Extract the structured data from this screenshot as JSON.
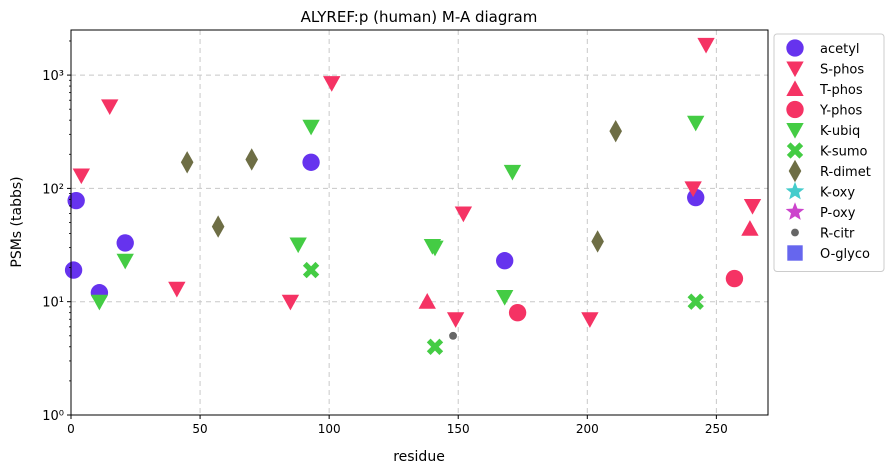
{
  "chart_data": {
    "type": "scatter",
    "title": "ALYREF:p (human) M-A diagram",
    "xlabel": "residue",
    "ylabel": "PSMs (tabbs)",
    "xlim": [
      0,
      270
    ],
    "ylim": [
      1,
      2500
    ],
    "yscale": "log",
    "grid": true,
    "legend": "outside-right",
    "x_ticks": [
      0,
      50,
      100,
      150,
      200,
      250
    ],
    "x_tick_labels": [
      "0",
      "50",
      "100",
      "150",
      "200",
      "250"
    ],
    "y_ticks": [
      1,
      10,
      100,
      1000
    ],
    "y_tick_labels": [
      "10⁰",
      "10¹",
      "10²",
      "10³"
    ],
    "series": [
      {
        "name": "acetyl",
        "marker": "circle",
        "color": "#6633ee",
        "points": [
          [
            1,
            19
          ],
          [
            2,
            78
          ],
          [
            11,
            12
          ],
          [
            21,
            33
          ],
          [
            93,
            170
          ],
          [
            168,
            23
          ],
          [
            242,
            83
          ]
        ]
      },
      {
        "name": "S-phos",
        "marker": "triangle-down",
        "color": "#f53364",
        "points": [
          [
            4,
            130
          ],
          [
            15,
            530
          ],
          [
            41,
            13
          ],
          [
            85,
            10
          ],
          [
            101,
            850
          ],
          [
            149,
            7
          ],
          [
            152,
            60
          ],
          [
            201,
            7
          ],
          [
            241,
            100
          ],
          [
            246,
            1850
          ],
          [
            264,
            70
          ]
        ]
      },
      {
        "name": "T-phos",
        "marker": "triangle-up",
        "color": "#f53364",
        "points": [
          [
            138,
            10
          ],
          [
            263,
            44
          ]
        ]
      },
      {
        "name": "Y-phos",
        "marker": "circle",
        "color": "#f53364",
        "points": [
          [
            173,
            8
          ],
          [
            257,
            16
          ]
        ]
      },
      {
        "name": "K-ubiq",
        "marker": "triangle-down",
        "color": "#44cc44",
        "points": [
          [
            11,
            10
          ],
          [
            21,
            23
          ],
          [
            88,
            32
          ],
          [
            93,
            350
          ],
          [
            140,
            31
          ],
          [
            141,
            30
          ],
          [
            168,
            11
          ],
          [
            171,
            140
          ],
          [
            242,
            380
          ]
        ]
      },
      {
        "name": "K-sumo",
        "marker": "x",
        "color": "#44cc44",
        "points": [
          [
            93,
            19
          ],
          [
            141,
            4
          ],
          [
            242,
            10
          ]
        ]
      },
      {
        "name": "R-dimet",
        "marker": "diamond",
        "color": "#6e6e45",
        "points": [
          [
            45,
            170
          ],
          [
            57,
            46
          ],
          [
            70,
            180
          ],
          [
            204,
            34
          ],
          [
            211,
            320
          ]
        ]
      },
      {
        "name": "K-oxy",
        "marker": "star",
        "color": "#44cccc",
        "points": []
      },
      {
        "name": "P-oxy",
        "marker": "star",
        "color": "#cc44cc",
        "points": []
      },
      {
        "name": "R-citr",
        "marker": "dot",
        "color": "#666666",
        "points": [
          [
            148,
            5
          ]
        ]
      },
      {
        "name": "O-glyco",
        "marker": "square",
        "color": "#6666ee",
        "points": []
      }
    ]
  }
}
